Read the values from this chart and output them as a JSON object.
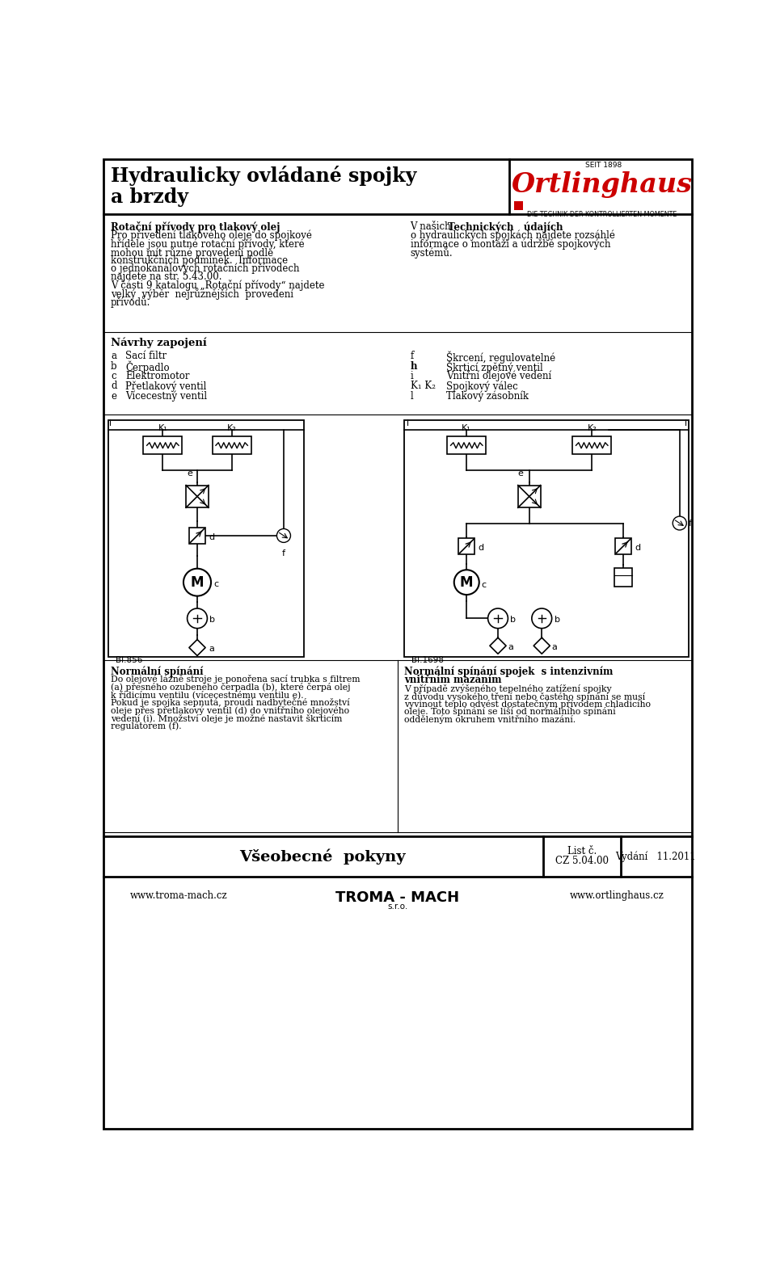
{
  "bg_color": "#ffffff",
  "title_line1": "Hydraulicky ovládané spojky",
  "title_line2": "a brzdy",
  "logo_text": "Ortlinghaus",
  "logo_seit": "SEIT 1898",
  "logo_tagline": "DIE TECHNIK DER KONTROLLIERTEN MOMENTE",
  "section1_title": "Rotační přívody pro tlakový olej",
  "section1_body_lines": [
    "Pro přivedení tlakového oleje do spojkové",
    "hřídele jsou nutné rotační přívody, které",
    "mohou mít různé provedení podle",
    "konstrukčních podmínek.  Informace",
    "o jednokanálových rotačních přívodech",
    "najdete na str. 5.43.00.",
    "V části 9 katalogu „Rotační přívody“ najdete",
    "velký  výběr  nejrůznějších  provedení",
    "přívodů."
  ],
  "section2_intro": "V našich",
  "section2_bold": "Technických   údajích",
  "section2_body_lines": [
    "o hydraulických spojkách najdete rozsáhlé",
    "informace o montáži a údržbě spojkových",
    "systémů."
  ],
  "nav_title": "Návrhy zapojení",
  "nav_left": [
    [
      "a",
      "Sací filtr"
    ],
    [
      "b",
      "Čerpadlo"
    ],
    [
      "c",
      "Elektromotor"
    ],
    [
      "d",
      "Přetlakový ventil"
    ],
    [
      "e",
      "Vícecestný ventil"
    ]
  ],
  "nav_right": [
    [
      "f",
      "Škrcení, regulovatelné",
      false
    ],
    [
      "h",
      "Škrticí zpětný ventil",
      true
    ],
    [
      "i",
      "Vnitřní olejové vedení",
      false
    ],
    [
      "K₁ K₂",
      "Spojkový válec",
      false
    ],
    [
      "l",
      "Tlakový zásobník",
      false
    ]
  ],
  "diag1_label": "Bl.856",
  "diag2_label": "Bl.1698",
  "footer_left_title": "Normální spínání",
  "footer_left_lines": [
    "Do olejové lázně stroje je ponořena sací trubka s filtrem",
    "(a) přesného ozubeného čerpadla (b), které čerpá olej",
    "k řídicímu ventilu (vícecestnému ventilu e).",
    "Pokud je spojka sepnutá, proudí nadbytečné množství",
    "oleje přes přetlakový ventil (d) do vnitřního olejového",
    "vedení (i). Množství oleje je možné nastavit škrticím",
    "regulátorem (f)."
  ],
  "footer_right_title_lines": [
    "Normální spínání spojek  s intenzivním",
    "vnitřním mazáním"
  ],
  "footer_right_lines": [
    "V případě zvýšeného tepelného zatížení spojky",
    "z důvodu vysokého tření nebo častého spínání se musí",
    "vyvinout teplo odvést dostatečným přívodem chladicího",
    "oleje. Toto spínání se liší od normálního spínání",
    "odděleným okruhem vnitřního mazání."
  ],
  "bottom_title": "Všeobecné  pokyny",
  "bottom_list": "List č.",
  "bottom_list2": "CZ 5.04.00",
  "bottom_vydani": "Vydání   11.2011",
  "url_left": "www.troma-mach.cz",
  "url_right": "www.ortlinghaus.cz"
}
